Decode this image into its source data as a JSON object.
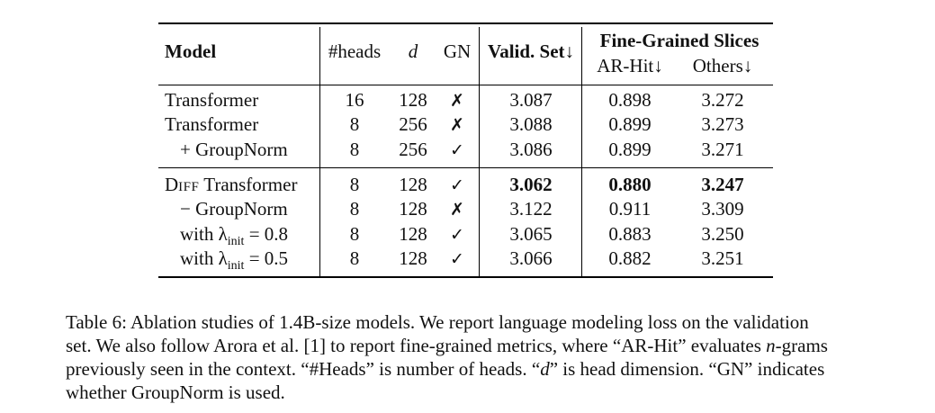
{
  "table": {
    "header": {
      "model": "Model",
      "heads": "#heads",
      "d": "d",
      "gn": "GN",
      "valid": "Valid. Set↓",
      "fine_group": "Fine-Grained Slices",
      "arhit": "AR-Hit↓",
      "others": "Others↓"
    },
    "rows": [
      {
        "model": "Transformer",
        "heads": "16",
        "d": "128",
        "gn": "✗",
        "valid": "3.087",
        "arhit": "0.898",
        "others": "3.272"
      },
      {
        "model": "Transformer",
        "heads": "8",
        "d": "256",
        "gn": "✗",
        "valid": "3.088",
        "arhit": "0.899",
        "others": "3.273"
      },
      {
        "model": "+ GroupNorm",
        "heads": "8",
        "d": "256",
        "gn": "✓",
        "valid": "3.086",
        "arhit": "0.899",
        "others": "3.271"
      },
      {
        "model_prefix_big": "D",
        "model_prefix_small": "IFF",
        "model_rest": " Transformer",
        "heads": "8",
        "d": "128",
        "gn": "✓",
        "valid": "3.062",
        "arhit": "0.880",
        "others": "3.247"
      },
      {
        "model": "− GroupNorm",
        "heads": "8",
        "d": "128",
        "gn": "✗",
        "valid": "3.122",
        "arhit": "0.911",
        "others": "3.309"
      },
      {
        "model_pre": "with λ",
        "model_sub": "init",
        "model_post": " = 0.8",
        "heads": "8",
        "d": "128",
        "gn": "✓",
        "valid": "3.065",
        "arhit": "0.883",
        "others": "3.250"
      },
      {
        "model_pre": "with λ",
        "model_sub": "init",
        "model_post": " = 0.5",
        "heads": "8",
        "d": "128",
        "gn": "✓",
        "valid": "3.066",
        "arhit": "0.882",
        "others": "3.251"
      }
    ]
  },
  "caption": {
    "line1": "Table 6: Ablation studies of 1.4B-size models. We report language modeling loss on the validation",
    "line2_a": "set. We also follow Arora et al. [",
    "line2_ref": "1",
    "line2_b": "] to report fine-grained metrics, where “AR-Hit” evaluates ",
    "line2_n": "n",
    "line2_c": "-grams",
    "line3_a": "previously seen in the context. “#Heads” is number of heads. “",
    "line3_d": "d",
    "line3_b": "” is head dimension. “GN” indicates",
    "line4": "whether GroupNorm is used."
  }
}
